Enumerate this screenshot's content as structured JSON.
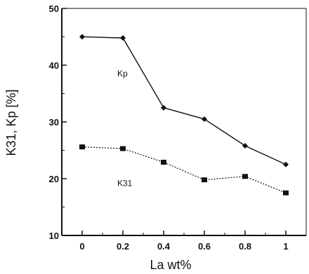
{
  "chart_data": {
    "type": "line",
    "xlabel": "La wt%",
    "ylabel": "K31, Kp [%]",
    "xlim": [
      -0.1,
      1.1
    ],
    "ylim": [
      10,
      50
    ],
    "x_ticks": [
      "0",
      "0.2",
      "0.4",
      "0.6",
      "0.8",
      "1"
    ],
    "x_tick_values": [
      0,
      0.2,
      0.4,
      0.6,
      0.8,
      1
    ],
    "y_ticks": [
      "10",
      "20",
      "30",
      "40",
      "50"
    ],
    "y_tick_values": [
      10,
      20,
      30,
      40,
      50
    ],
    "grid": false,
    "series": [
      {
        "name": "Kp",
        "x": [
          0,
          0.2,
          0.4,
          0.6,
          0.8,
          1
        ],
        "values": [
          45.0,
          44.8,
          32.5,
          30.5,
          25.8,
          22.5
        ],
        "line_style": "solid",
        "marker": "diamond",
        "color": "#111111"
      },
      {
        "name": "K31",
        "x": [
          0,
          0.2,
          0.4,
          0.6,
          0.8,
          1
        ],
        "values": [
          25.6,
          25.3,
          22.9,
          19.8,
          20.4,
          17.5
        ],
        "line_style": "dotted",
        "marker": "square",
        "color": "#111111"
      }
    ]
  }
}
